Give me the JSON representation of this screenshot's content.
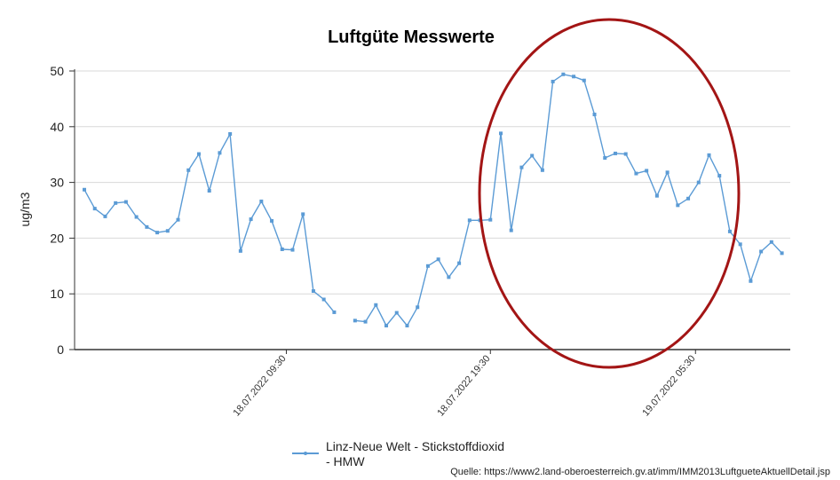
{
  "chart_data": {
    "type": "line",
    "title": "Luftgüte Messwerte",
    "ylabel": "ug/m3",
    "ylim": [
      0,
      50
    ],
    "yticks": [
      0,
      10,
      20,
      30,
      40,
      50
    ],
    "x_tick_labels": [
      {
        "label": "18.07.2022 09:30",
        "index": 19.4
      },
      {
        "label": "18.07.2022 19:30",
        "index": 39.0
      },
      {
        "label": "19.07.2022 05:30",
        "index": 58.7
      }
    ],
    "series": [
      {
        "name": "Linz-Neue Welt - Stickstoffdioxid - HMW",
        "color": "#5b9bd5",
        "values": [
          28.7,
          25.3,
          23.9,
          26.3,
          26.5,
          23.8,
          22.0,
          21.0,
          21.3,
          23.3,
          32.2,
          35.1,
          28.5,
          35.3,
          38.7,
          17.7,
          23.4,
          26.6,
          23.1,
          18.0,
          17.9,
          24.3,
          10.5,
          9.0,
          6.7,
          null,
          5.2,
          5.0,
          8.0,
          4.3,
          6.6,
          4.3,
          7.6,
          15.0,
          16.2,
          13.0,
          15.5,
          23.2,
          23.2,
          23.3,
          38.8,
          21.4,
          32.7,
          34.8,
          32.2,
          48.1,
          49.4,
          49.0,
          48.3,
          42.2,
          34.4,
          35.2,
          35.1,
          31.6,
          32.1,
          27.6,
          31.8,
          25.9,
          27.1,
          30.0,
          34.9,
          31.2,
          21.2,
          18.9,
          12.3,
          17.6,
          19.3,
          17.3
        ]
      }
    ],
    "grid": "horizontal",
    "legend_position": "bottom-left"
  },
  "source": "Quelle: https://www2.land-oberoesterreich.gv.at/imm/IMM2013LuftgueteAktuellDetail.jsp",
  "annotation": {
    "type": "ellipse",
    "color": "#a31515"
  }
}
